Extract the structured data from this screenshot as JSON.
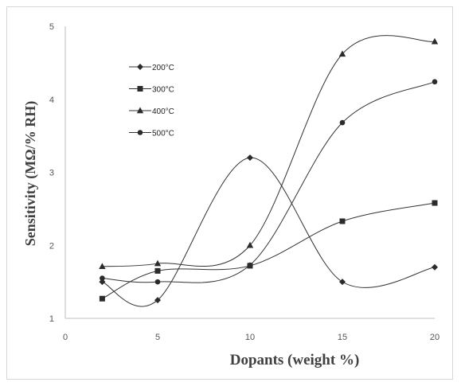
{
  "chart_data": {
    "type": "line",
    "title": "",
    "xlabel": "Dopants (weight %)",
    "ylabel": "Sensitivity (MΩ/% RH)",
    "xlim": [
      0,
      20
    ],
    "ylim": [
      1,
      5
    ],
    "xticks": [
      0,
      5,
      10,
      15,
      20
    ],
    "yticks": [
      1,
      2,
      3,
      4,
      5
    ],
    "grid": false,
    "smooth": true,
    "legend_position": "top-left",
    "series": [
      {
        "name": "200°C",
        "marker": "diamond",
        "color": "#333333",
        "x": [
          2,
          5,
          10,
          15,
          20
        ],
        "y": [
          1.5,
          1.25,
          3.2,
          1.5,
          1.7
        ]
      },
      {
        "name": "300°C",
        "marker": "square",
        "color": "#333333",
        "x": [
          2,
          5,
          10,
          15,
          20
        ],
        "y": [
          1.27,
          1.65,
          1.72,
          2.33,
          2.58
        ]
      },
      {
        "name": "400°C",
        "marker": "triangle",
        "color": "#333333",
        "x": [
          2,
          5,
          10,
          15,
          20
        ],
        "y": [
          1.71,
          1.75,
          2.0,
          4.62,
          4.79
        ]
      },
      {
        "name": "500°C",
        "marker": "circle",
        "color": "#333333",
        "x": [
          2,
          5,
          10,
          15,
          20
        ],
        "y": [
          1.55,
          1.5,
          1.73,
          3.68,
          4.24
        ]
      }
    ]
  }
}
